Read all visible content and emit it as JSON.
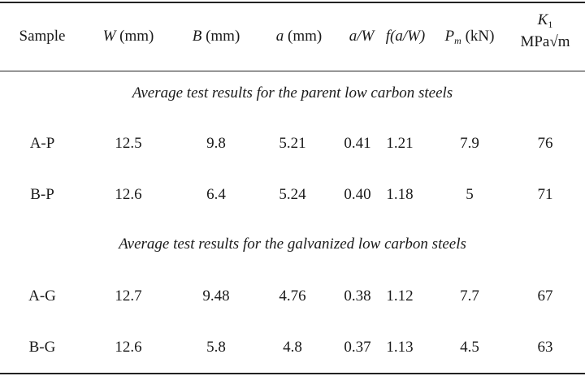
{
  "table": {
    "headers": {
      "sample": "Sample",
      "w_sym": "W",
      "w_unit": "(mm)",
      "b_sym": "B",
      "b_unit": "(mm)",
      "a_sym": "a",
      "a_unit": "(mm)",
      "aw": "a/W",
      "faw": "f(a/W)",
      "pm_sym": "P",
      "pm_sub": "m",
      "pm_unit": "(kN)",
      "k_sym": "K",
      "k_sub": "1",
      "k_unit": "MPa√m"
    },
    "section_parent": "Average test results for the parent low carbon steels",
    "section_galv": "Average test results for the galvanized low carbon steels",
    "rows": [
      [
        "A-P",
        "12.5",
        "9.8",
        "5.21",
        "0.41",
        "1.21",
        "7.9",
        "76"
      ],
      [
        "B-P",
        "12.6",
        "6.4",
        "5.24",
        "0.40",
        "1.18",
        "5",
        "71"
      ],
      [
        "A-G",
        "12.7",
        "9.48",
        "4.76",
        "0.38",
        "1.12",
        "7.7",
        "67"
      ],
      [
        "B-G",
        "12.6",
        "5.8",
        "4.8",
        "0.37",
        "1.13",
        "4.5",
        "63"
      ]
    ]
  }
}
